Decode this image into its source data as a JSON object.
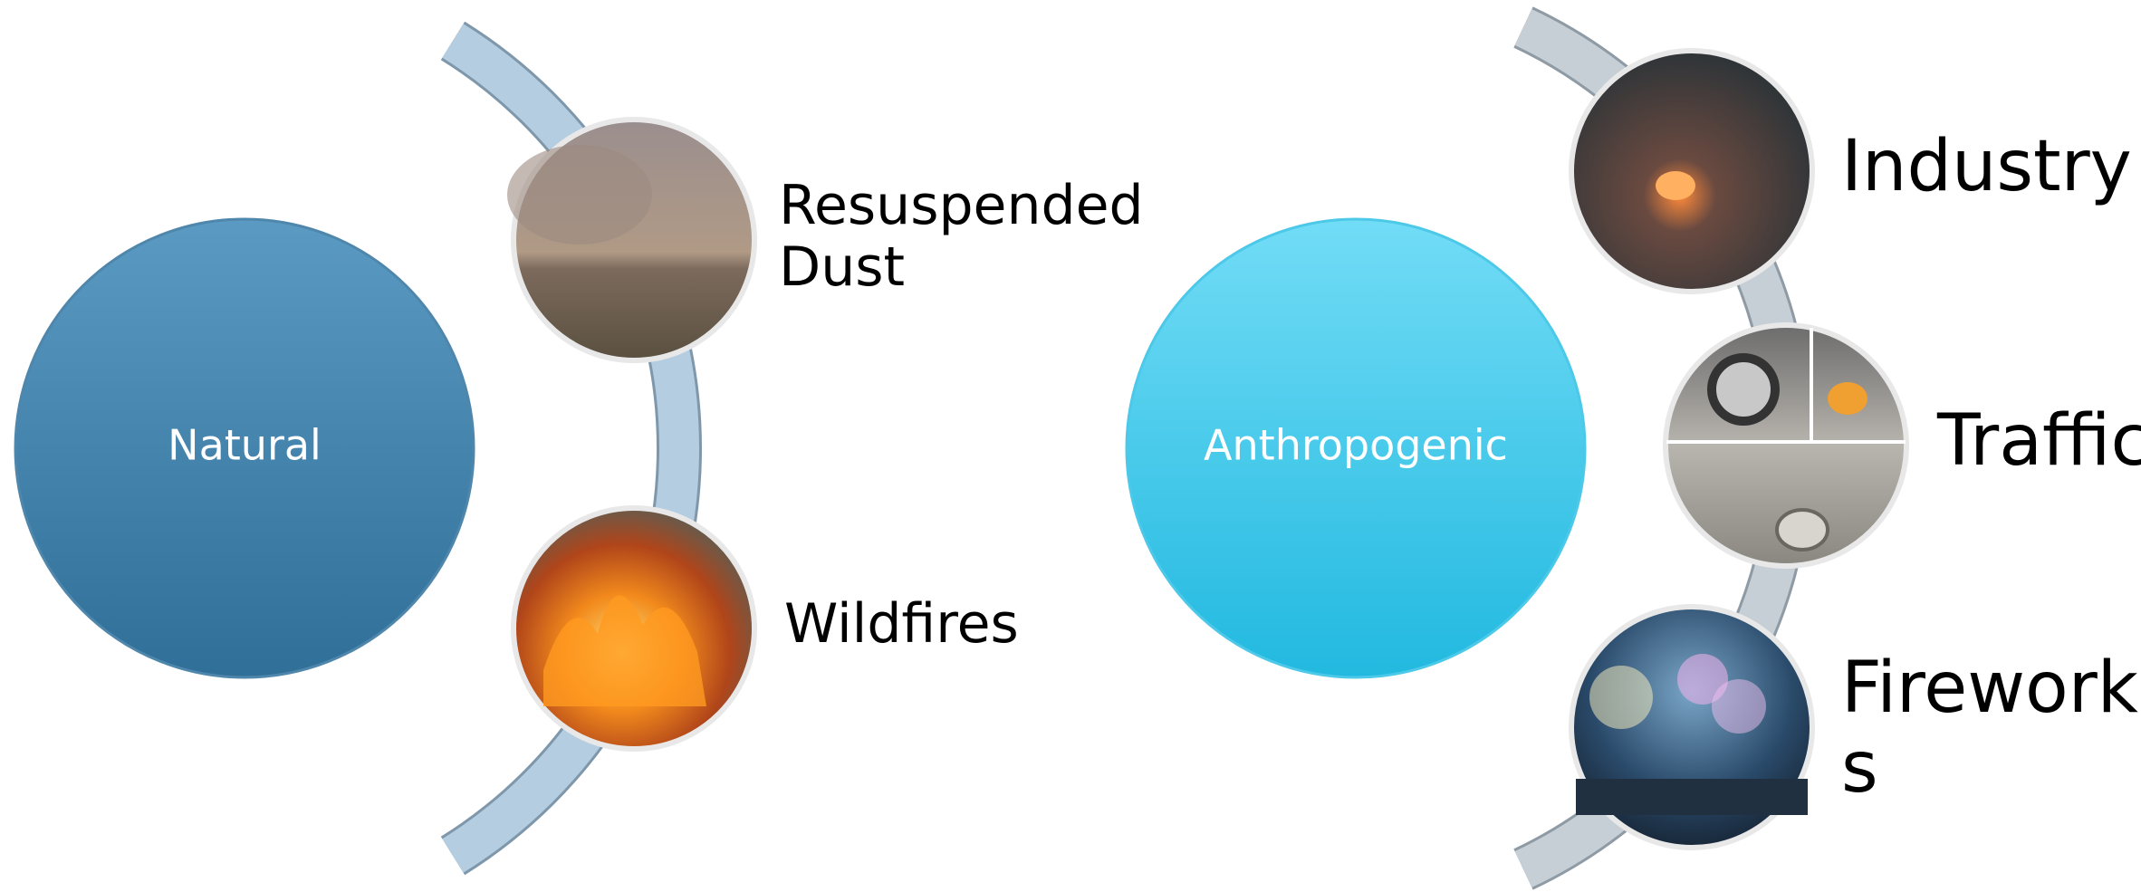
{
  "groups": [
    {
      "label": "Natural",
      "items": [
        {
          "lines": [
            "Resuspended",
            "Dust"
          ]
        },
        {
          "lines": [
            "Wildfires"
          ]
        }
      ]
    },
    {
      "label": "Anthropogenic",
      "items": [
        {
          "lines": [
            "Industry"
          ]
        },
        {
          "lines": [
            "Traffic"
          ]
        },
        {
          "lines": [
            "Firework",
            "s"
          ]
        }
      ]
    }
  ]
}
